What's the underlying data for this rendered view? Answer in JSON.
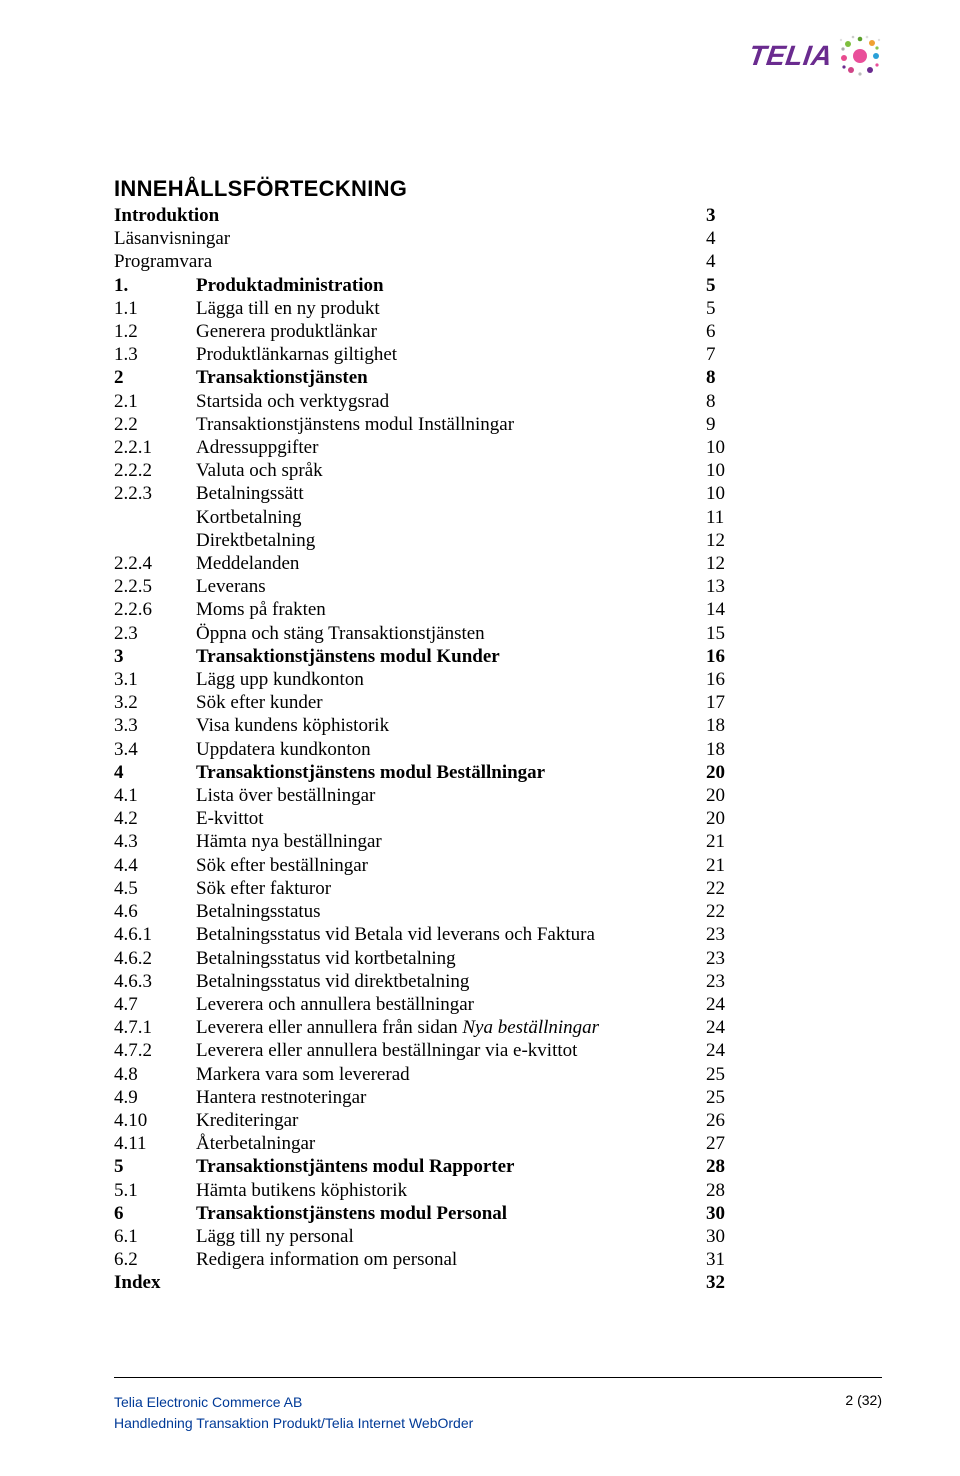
{
  "logo": {
    "text": "TELIA"
  },
  "title": "INNEHÅLLSFÖRTECKNING",
  "toc": [
    {
      "num": "",
      "label": "Introduktion",
      "page": "3",
      "bold": true
    },
    {
      "num": "",
      "label": "Läsanvisningar",
      "page": "4",
      "bold": false
    },
    {
      "num": "",
      "label": "Programvara",
      "page": "4",
      "bold": false
    },
    {
      "num": "1.",
      "label": "Produktadministration",
      "page": "5",
      "bold": true
    },
    {
      "num": "1.1",
      "label": "Lägga till en ny produkt",
      "page": "5",
      "bold": false
    },
    {
      "num": "1.2",
      "label": "Generera produktlänkar",
      "page": "6",
      "bold": false
    },
    {
      "num": "1.3",
      "label": "Produktlänkarnas giltighet",
      "page": "7",
      "bold": false
    },
    {
      "num": "2",
      "label": "Transaktionstjänsten",
      "page": "8",
      "bold": true
    },
    {
      "num": "2.1",
      "label": "Startsida och verktygsrad",
      "page": "8",
      "bold": false
    },
    {
      "num": "2.2",
      "label": "Transaktionstjänstens modul Inställningar",
      "page": "9",
      "bold": false
    },
    {
      "num": "2.2.1",
      "label": "Adressuppgifter",
      "page": "10",
      "bold": false
    },
    {
      "num": "2.2.2",
      "label": "Valuta och språk",
      "page": "10",
      "bold": false
    },
    {
      "num": "2.2.3",
      "label": "Betalningssätt",
      "page": "10",
      "bold": false
    },
    {
      "num": "",
      "label": "Kortbetalning",
      "page": "11",
      "bold": false,
      "indent": true
    },
    {
      "num": "",
      "label": "Direktbetalning",
      "page": "12",
      "bold": false,
      "indent": true
    },
    {
      "num": "2.2.4",
      "label": "Meddelanden",
      "page": "12",
      "bold": false
    },
    {
      "num": "2.2.5",
      "label": "Leverans",
      "page": "13",
      "bold": false
    },
    {
      "num": "2.2.6",
      "label": "Moms på frakten",
      "page": "14",
      "bold": false
    },
    {
      "num": "2.3",
      "label": "Öppna och stäng Transaktionstjänsten",
      "page": "15",
      "bold": false
    },
    {
      "num": "3",
      "label": "Transaktionstjänstens modul Kunder",
      "page": "16",
      "bold": true
    },
    {
      "num": "3.1",
      "label": "Lägg upp kundkonton",
      "page": "16",
      "bold": false
    },
    {
      "num": "3.2",
      "label": "Sök efter kunder",
      "page": "17",
      "bold": false
    },
    {
      "num": "3.3",
      "label": "Visa kundens köphistorik",
      "page": "18",
      "bold": false
    },
    {
      "num": "3.4",
      "label": "Uppdatera kundkonton",
      "page": "18",
      "bold": false
    },
    {
      "num": "4",
      "label": "Transaktionstjänstens modul Beställningar",
      "page": "20",
      "bold": true
    },
    {
      "num": "4.1",
      "label": "Lista över beställningar",
      "page": "20",
      "bold": false
    },
    {
      "num": "4.2",
      "label": "E-kvittot",
      "page": "20",
      "bold": false
    },
    {
      "num": "4.3",
      "label": "Hämta nya beställningar",
      "page": "21",
      "bold": false
    },
    {
      "num": "4.4",
      "label": "Sök efter beställningar",
      "page": "21",
      "bold": false
    },
    {
      "num": "4.5",
      "label": "Sök efter fakturor",
      "page": "22",
      "bold": false
    },
    {
      "num": "4.6",
      "label": "Betalningsstatus",
      "page": "22",
      "bold": false
    },
    {
      "num": "4.6.1",
      "label": "Betalningsstatus vid Betala vid leverans och Faktura",
      "page": "23",
      "bold": false
    },
    {
      "num": "4.6.2",
      "label": "Betalningsstatus vid kortbetalning",
      "page": "23",
      "bold": false
    },
    {
      "num": "4.6.3",
      "label": "Betalningsstatus vid direktbetalning",
      "page": "23",
      "bold": false
    },
    {
      "num": "4.7",
      "label": "Leverera och annullera beställningar",
      "page": "24",
      "bold": false
    },
    {
      "num": "4.7.1",
      "label": "Leverera eller annullera från sidan",
      "page": "24",
      "bold": false,
      "italic_tail": "Nya beställningar"
    },
    {
      "num": "4.7.2",
      "label": "Leverera eller annullera beställningar via e-kvittot",
      "page": "24",
      "bold": false
    },
    {
      "num": "4.8",
      "label": "Markera vara som levererad",
      "page": "25",
      "bold": false
    },
    {
      "num": "4.9",
      "label": "Hantera restnoteringar",
      "page": "25",
      "bold": false
    },
    {
      "num": "4.10",
      "label": "Krediteringar",
      "page": "26",
      "bold": false
    },
    {
      "num": "4.11",
      "label": "Återbetalningar",
      "page": "27",
      "bold": false
    },
    {
      "num": "5",
      "label": "Transaktionstjäntens modul Rapporter",
      "page": "28",
      "bold": true
    },
    {
      "num": "5.1",
      "label": "Hämta butikens köphistorik",
      "page": "28",
      "bold": false
    },
    {
      "num": "6",
      "label": "Transaktionstjänstens modul Personal",
      "page": "30",
      "bold": true
    },
    {
      "num": "6.1",
      "label": "Lägg till ny personal",
      "page": "30",
      "bold": false
    },
    {
      "num": "6.2",
      "label": "Redigera information om personal",
      "page": "31",
      "bold": false
    },
    {
      "num": "",
      "label": "Index",
      "page": "32",
      "bold": true,
      "noindent": true
    }
  ],
  "footer": {
    "line1": "Telia Electronic Commerce AB",
    "line2": "Handledning Transaktion Produkt/Telia Internet WebOrder",
    "pager": "2 (32)"
  }
}
